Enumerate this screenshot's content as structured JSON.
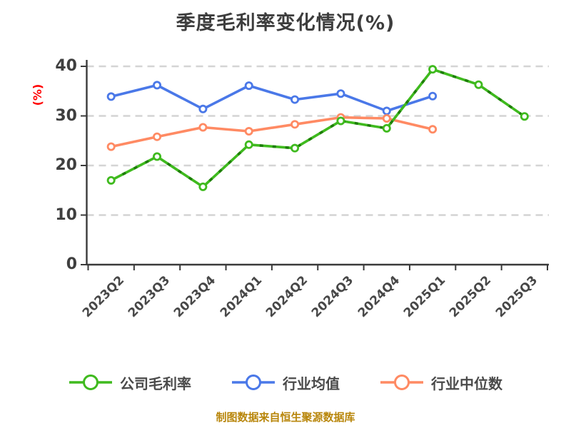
{
  "title": "季度毛利率变化情况(%)",
  "y_axis_unit": "(%)",
  "footer": "制图数据来自恒生聚源数据库",
  "colors": {
    "title_text": "#3d3d3d",
    "axis": "#3a3a3a",
    "grid": "#d4d4d4",
    "tick_text": "#474747",
    "y_unit_text": "#ff0000",
    "footer_text": "#b8860b",
    "marker_fill": "#ffffff"
  },
  "chart_data": {
    "type": "line",
    "title": "季度毛利率变化情况(%)",
    "xlabel": "",
    "ylabel": "(%)",
    "ylim": [
      0,
      40
    ],
    "yticks": [
      0,
      10,
      20,
      30,
      40
    ],
    "grid": "horizontal-dashed",
    "legend_position": "bottom",
    "categories": [
      "2023Q2",
      "2023Q3",
      "2023Q4",
      "2024Q1",
      "2024Q2",
      "2024Q3",
      "2024Q4",
      "2025Q1",
      "2025Q2",
      "2025Q3"
    ],
    "series": [
      {
        "name": "行业均值",
        "color": "#4a78e8",
        "line_style": "solid",
        "values": [
          33.9,
          36.2,
          31.4,
          36.1,
          33.3,
          34.5,
          31.0,
          34.0,
          null,
          null
        ]
      },
      {
        "name": "行业中位数",
        "color": "#ff8a63",
        "line_style": "solid",
        "values": [
          23.8,
          25.8,
          27.7,
          26.9,
          28.3,
          29.7,
          29.5,
          27.3,
          null,
          null
        ]
      },
      {
        "name": "公司毛利率",
        "color": "#3fba1e",
        "dash_color": "#1e7d0a",
        "line_style": "dash-overlay",
        "values": [
          17.0,
          21.8,
          15.7,
          24.2,
          23.5,
          29.0,
          27.5,
          39.4,
          36.3,
          29.9
        ]
      }
    ],
    "legend_order": [
      "公司毛利率",
      "行业均值",
      "行业中位数"
    ]
  }
}
